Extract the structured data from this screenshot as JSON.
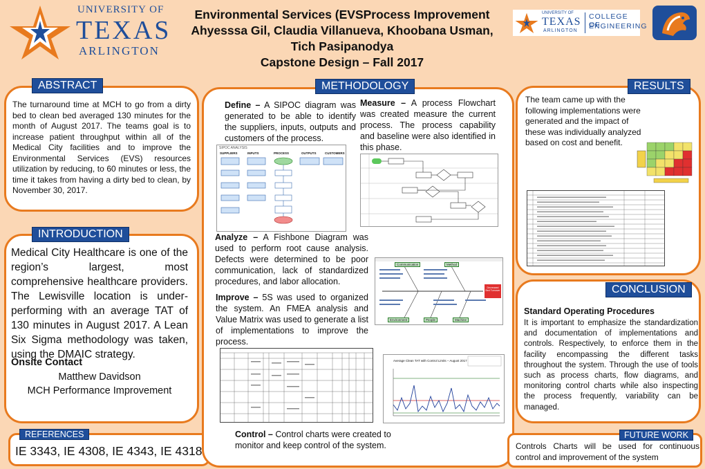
{
  "logo_left": {
    "line1": "UNIVERSITY OF",
    "line2": "TEXAS",
    "line3": "ARLINGTON",
    "text_color": "#1f4e9a",
    "star_color": "#e87a1e"
  },
  "logo_right": {
    "small1": "UNIVERSITY OF",
    "small2": "TEXAS",
    "small3": "ARLINGTON",
    "college1": "COLLEGE OF",
    "college2": "ENGINEERING"
  },
  "title": {
    "line1": "Environmental Services (EVSProcess Improvement",
    "line2": "Ahyesssa Gil, Claudia Villanueva, Khoobana Usman,",
    "line3": "Tich Pasipanodya",
    "line4": "Capstone Design – Fall 2017"
  },
  "abstract": {
    "heading": "ABSTRACT",
    "body": "The turnaround time at MCH to go from a dirty bed to clean bed averaged 130 minutes for the month of August 2017. The teams goal is to increase patient throughput within all of the Medical City facilities and to improve the Environmental Services (EVS) resources utilization by reducing, to 60 minutes or less, the time it takes from having a dirty bed to clean, by November 30, 2017."
  },
  "introduction": {
    "heading": "INTRODUCTION",
    "body": "Medical City Healthcare is one of the region’s largest, most comprehensive healthcare providers. The Lewisville location is under-performing with an average TAT of 130 minutes in August 2017. A Lean Six Sigma methodology was taken, using the DMAIC strategy.",
    "contact_heading": "Onsite Contact",
    "contact_name": "Matthew Davidson",
    "contact_title": "MCH Performance Improvement"
  },
  "references": {
    "heading": "REFERENCES",
    "body": "IE 3343, IE 4308, IE 4343, IE 4318"
  },
  "methodology": {
    "heading": "METHODOLOGY",
    "define_label": "Define –",
    "define_text": " A SIPOC diagram was generated to be able to identify the suppliers, inputs, outputs and customers of the process.",
    "measure_label": "Measure –",
    "measure_text": " A process Flowchart was created measure the current process. The process capability and baseline were also identified in this phase.",
    "analyze_label": "Analyze –",
    "analyze_text": " A Fishbone Diagram was used to perform root cause analysis. Defects were determined to be poor communication, lack of standardized procedures, and labor allocation.",
    "improve_label": "Improve –",
    "improve_text": " 5S was used to organized the system. An FMEA analysis and Value Matrix was used to generate a list of implementations to improve the process.",
    "control_label": "Control –",
    "control_text": " Control charts were created to monitor and keep control of the system.",
    "sipoc": {
      "title": "SIPOC ANALYSIS",
      "cols": [
        "SUPPLIERS",
        "INPUTS",
        "PROCESS",
        "OUTPUTS",
        "CUSTOMERS"
      ]
    },
    "fishbone": {
      "head": "Decreased Bed Turnover",
      "boxes": [
        "Communication",
        "Method",
        "Environment",
        "People",
        "Machine"
      ]
    },
    "control_chart_title": "Average Clean TAT with Control Limits – August 2017 (3)"
  },
  "results": {
    "heading": "RESULTS",
    "body": "The team came up with the following implementations were generated and the impact of these was individually analyzed based on cost and benefit."
  },
  "conclusion": {
    "heading": "CONCLUSION",
    "subheading": "Standard Operating Procedures",
    "body": "It is important to emphasize the standardization and documentation of implementations and controls. Respectively, to enforce them in the facility encompassing the different tasks throughout the system. Through the use of tools such as process charts, flow diagrams, and monitoring control charts while also inspecting the process frequently, variability can be managed."
  },
  "future_work": {
    "heading": "FUTURE WORK",
    "body": "Controls Charts will be used for continuous control and improvement of the system"
  },
  "colors": {
    "background": "#fbd7b5",
    "panel_border": "#e87a1e",
    "header_blue": "#1f4e9a"
  }
}
